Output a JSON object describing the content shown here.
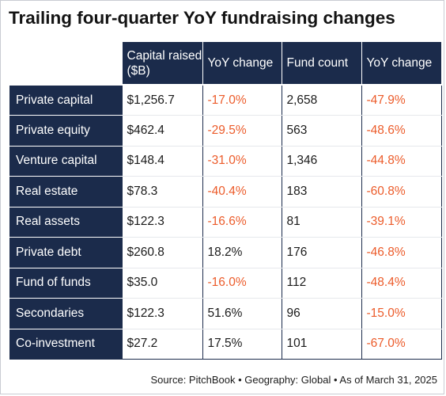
{
  "chart_data": {
    "type": "table",
    "title": "Trailing four-quarter YoY fundraising changes",
    "columns": [
      "",
      "Capital raised ($B)",
      "YoY change",
      "Fund count",
      "YoY change"
    ],
    "rows": [
      {
        "label": "Private capital",
        "capital": "$1,256.7",
        "capital_yoy": "-17.0%",
        "fund_count": "2,658",
        "count_yoy": "-47.9%"
      },
      {
        "label": "Private equity",
        "capital": "$462.4",
        "capital_yoy": "-29.5%",
        "fund_count": "563",
        "count_yoy": "-48.6%"
      },
      {
        "label": "Venture capital",
        "capital": "$148.4",
        "capital_yoy": "-31.0%",
        "fund_count": "1,346",
        "count_yoy": "-44.8%"
      },
      {
        "label": "Real estate",
        "capital": "$78.3",
        "capital_yoy": "-40.4%",
        "fund_count": "183",
        "count_yoy": "-60.8%"
      },
      {
        "label": "Real assets",
        "capital": "$122.3",
        "capital_yoy": "-16.6%",
        "fund_count": "81",
        "count_yoy": "-39.1%"
      },
      {
        "label": "Private debt",
        "capital": "$260.8",
        "capital_yoy": "18.2%",
        "fund_count": "176",
        "count_yoy": "-46.8%"
      },
      {
        "label": "Fund of funds",
        "capital": "$35.0",
        "capital_yoy": "-16.0%",
        "fund_count": "112",
        "count_yoy": "-48.4%"
      },
      {
        "label": "Secondaries",
        "capital": "$122.3",
        "capital_yoy": "51.6%",
        "fund_count": "96",
        "count_yoy": "-15.0%"
      },
      {
        "label": "Co-investment",
        "capital": "$27.2",
        "capital_yoy": "17.5%",
        "fund_count": "101",
        "count_yoy": "-67.0%"
      }
    ],
    "source": "Source: PitchBook  •  Geography: Global  •  As of March 31, 2025"
  },
  "colors": {
    "header_bg": "#1b2b4b",
    "header_text": "#ffffff",
    "negative": "#ec5c2b",
    "positive": "#1b1b1b"
  }
}
